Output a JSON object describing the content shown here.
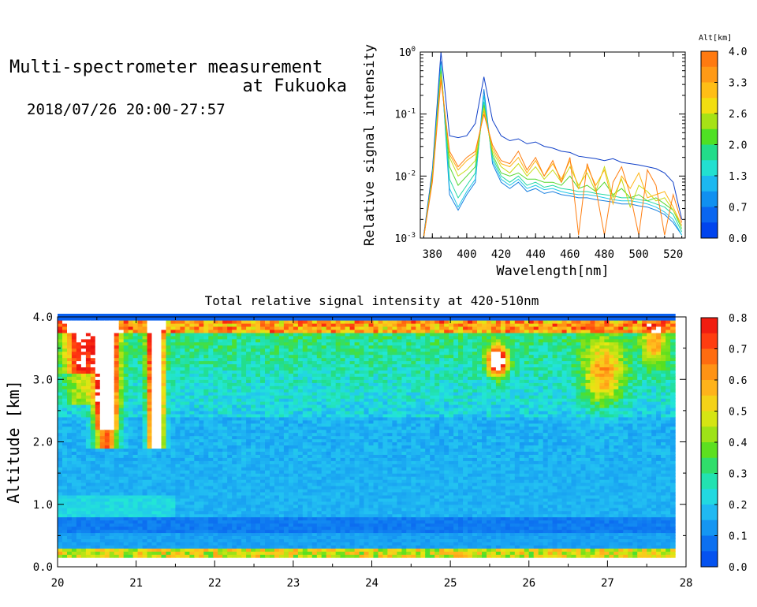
{
  "header": {
    "title_line1": "Multi-spectrometer measurement",
    "title_line2": "at Fukuoka",
    "date_range": "2018/07/26 20:00-27:57"
  },
  "colors": {
    "scale_stops": [
      "#0044ee",
      "#0a66f0",
      "#1595f2",
      "#22c0f2",
      "#22e6d6",
      "#22dd88",
      "#55e020",
      "#a6e216",
      "#e8e612",
      "#ffc01e",
      "#ff9a16",
      "#ff6a10",
      "#ff3010",
      "#e81010"
    ]
  },
  "chart_data": [
    {
      "type": "line",
      "xlabel": "Wavelength[nm]",
      "ylabel": "Relative signal intensity",
      "x_ticks": [
        "380",
        "400",
        "420",
        "440",
        "460",
        "480",
        "500",
        "520"
      ],
      "xlim": [
        373,
        527
      ],
      "y_scale": "log",
      "y_ticks": [
        {
          "base": "10",
          "exp": "0"
        },
        {
          "base": "10",
          "exp": "-1"
        },
        {
          "base": "10",
          "exp": "-2"
        },
        {
          "base": "10",
          "exp": "-3"
        }
      ],
      "ylim_log10": [
        -3,
        0
      ],
      "colorbar": {
        "title": "Alt[km]",
        "labels": [
          "4.0",
          "3.3",
          "2.6",
          "2.0",
          "1.3",
          "0.7",
          "0.0"
        ],
        "colors": [
          "#ff7a10",
          "#ff9a16",
          "#ffbe16",
          "#f2de10",
          "#a6e216",
          "#4fe024",
          "#22dc8a",
          "#22e0d0",
          "#1cb8f0",
          "#1090f0",
          "#0a66f0",
          "#0044ee"
        ]
      },
      "x": [
        375,
        380,
        385,
        390,
        395,
        400,
        405,
        410,
        415,
        420,
        425,
        430,
        435,
        440,
        445,
        450,
        455,
        460,
        465,
        470,
        475,
        480,
        485,
        490,
        495,
        500,
        505,
        510,
        515,
        520,
        525
      ],
      "series": [
        {
          "color": "#1040c8",
          "values": [
            -2.95,
            -1.9,
            0.0,
            -1.35,
            -1.38,
            -1.35,
            -1.15,
            -0.4,
            -1.1,
            -1.35,
            -1.43,
            -1.4,
            -1.48,
            -1.45,
            -1.52,
            -1.55,
            -1.6,
            -1.62,
            -1.68,
            -1.7,
            -1.72,
            -1.75,
            -1.72,
            -1.78,
            -1.8,
            -1.82,
            -1.85,
            -1.88,
            -1.95,
            -2.1,
            -2.7
          ]
        },
        {
          "color": "#1880e0",
          "values": [
            -2.98,
            -1.95,
            -0.15,
            -2.3,
            -2.55,
            -2.3,
            -2.1,
            -0.6,
            -1.8,
            -2.1,
            -2.2,
            -2.1,
            -2.25,
            -2.2,
            -2.28,
            -2.25,
            -2.3,
            -2.32,
            -2.35,
            -2.35,
            -2.38,
            -2.4,
            -2.42,
            -2.45,
            -2.45,
            -2.48,
            -2.5,
            -2.55,
            -2.62,
            -2.75,
            -2.95
          ]
        },
        {
          "color": "#20c8e8",
          "values": [
            -2.98,
            -1.98,
            -0.2,
            -2.2,
            -2.5,
            -2.25,
            -2.05,
            -0.7,
            -1.75,
            -2.05,
            -2.15,
            -2.05,
            -2.2,
            -2.15,
            -2.22,
            -2.2,
            -2.25,
            -2.28,
            -2.3,
            -2.3,
            -2.32,
            -2.35,
            -2.38,
            -2.4,
            -2.4,
            -2.42,
            -2.45,
            -2.5,
            -2.58,
            -2.7,
            -2.95
          ]
        },
        {
          "color": "#22d8a0",
          "values": [
            -2.98,
            -2.0,
            -0.25,
            -2.05,
            -2.35,
            -2.15,
            -1.95,
            -0.8,
            -1.7,
            -2.0,
            -2.1,
            -2.0,
            -2.15,
            -2.1,
            -2.18,
            -2.15,
            -2.2,
            -2.22,
            -2.25,
            -2.25,
            -2.28,
            -2.3,
            -2.32,
            -2.35,
            -2.35,
            -2.38,
            -2.4,
            -2.45,
            -2.5,
            -2.62,
            -2.9
          ]
        },
        {
          "color": "#55d830",
          "values": [
            -2.98,
            -2.0,
            -0.3,
            -1.85,
            -2.15,
            -2.0,
            -1.85,
            -0.85,
            -1.65,
            -1.95,
            -2.0,
            -1.95,
            -2.05,
            -2.05,
            -2.1,
            -2.1,
            -2.15,
            -2.0,
            -2.2,
            -2.15,
            -2.25,
            -2.1,
            -2.3,
            -2.2,
            -2.35,
            -2.3,
            -2.4,
            -2.35,
            -2.45,
            -2.55,
            -2.85
          ]
        },
        {
          "color": "#c8dc18",
          "values": [
            -2.98,
            -2.05,
            -0.35,
            -1.7,
            -2.0,
            -1.9,
            -1.75,
            -0.9,
            -1.6,
            -1.85,
            -1.95,
            -1.8,
            -2.0,
            -1.85,
            -2.05,
            -1.9,
            -2.1,
            -1.85,
            -2.15,
            -1.95,
            -2.25,
            -1.85,
            -2.35,
            -2.05,
            -2.5,
            -2.15,
            -2.25,
            -2.4,
            -2.35,
            -2.55,
            -2.8
          ]
        },
        {
          "color": "#ffb414",
          "values": [
            -2.98,
            -2.05,
            -0.4,
            -1.65,
            -1.9,
            -1.75,
            -1.65,
            -0.95,
            -1.55,
            -1.8,
            -1.85,
            -1.7,
            -1.95,
            -1.75,
            -2.0,
            -1.8,
            -2.05,
            -1.75,
            -2.2,
            -1.85,
            -2.15,
            -1.9,
            -2.45,
            -2.0,
            -2.2,
            -1.95,
            -2.35,
            -2.3,
            -2.25,
            -2.5,
            -2.8
          ]
        },
        {
          "color": "#ff7e10",
          "values": [
            -2.98,
            -2.1,
            -0.45,
            -1.6,
            -1.85,
            -1.7,
            -1.6,
            -1.0,
            -1.5,
            -1.75,
            -1.8,
            -1.6,
            -1.9,
            -1.7,
            -2.0,
            -1.75,
            -2.1,
            -1.7,
            -2.95,
            -1.8,
            -2.2,
            -2.95,
            -2.1,
            -1.85,
            -2.3,
            -2.95,
            -1.9,
            -2.15,
            -2.95,
            -2.3,
            -2.75
          ]
        }
      ]
    },
    {
      "type": "heatmap",
      "title": "Total relative signal intensity at 420-510nm",
      "ylabel": "Altitude [km]",
      "x_ticks": [
        "20",
        "21",
        "22",
        "23",
        "24",
        "25",
        "26",
        "27",
        "28"
      ],
      "xlim": [
        20,
        28
      ],
      "y_ticks": [
        "0.0",
        "1.0",
        "2.0",
        "3.0",
        "4.0"
      ],
      "ylim": [
        0,
        4
      ],
      "colorbar": {
        "labels": [
          "0.8",
          "0.7",
          "0.6",
          "0.5",
          "0.4",
          "0.3",
          "0.2",
          "0.1",
          "0.0"
        ],
        "range": [
          0,
          0.8
        ]
      }
    }
  ]
}
